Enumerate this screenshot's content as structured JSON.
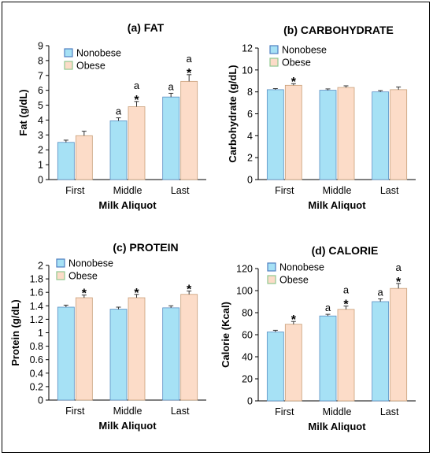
{
  "colors": {
    "nonobese": "#a6e1f5",
    "obese": "#fcdcc8",
    "nonobese_edge": "#5a8fc4",
    "obese_edge": "#c9a07a",
    "error_bar": "#333333"
  },
  "chart_data": [
    {
      "id": "fat",
      "type": "bar",
      "title": "(a)   FAT",
      "xlabel": "Milk Aliquot",
      "ylabel": "Fat (g/dL)",
      "ylim": [
        0,
        9
      ],
      "yticks": [
        0,
        1,
        2,
        3,
        4,
        5,
        6,
        7,
        8,
        9
      ],
      "categories": [
        "First",
        "Middle",
        "Last"
      ],
      "legend": "top-left",
      "series": [
        {
          "name": "Nonobese",
          "values": [
            2.5,
            3.95,
            5.55
          ],
          "errors": [
            0.15,
            0.2,
            0.25
          ],
          "annotations": [
            "",
            "a",
            "a"
          ]
        },
        {
          "name": "Obese",
          "values": [
            2.95,
            4.9,
            6.6
          ],
          "errors": [
            0.3,
            0.35,
            0.45
          ],
          "annotations": [
            "",
            "a *",
            "a *"
          ]
        }
      ]
    },
    {
      "id": "carbohydrate",
      "type": "bar",
      "title": "(b)   CARBOHYDRATE",
      "xlabel": "Milk Aliquot",
      "ylabel": "Carbohydrate (g/dL)",
      "ylim": [
        0,
        12
      ],
      "yticks": [
        0,
        2,
        4,
        6,
        8,
        10,
        12
      ],
      "categories": [
        "First",
        "Middle",
        "Last"
      ],
      "legend": "top-left",
      "series": [
        {
          "name": "Nonobese",
          "values": [
            8.2,
            8.15,
            8.0
          ],
          "errors": [
            0.1,
            0.12,
            0.12
          ],
          "annotations": [
            "",
            "",
            ""
          ]
        },
        {
          "name": "Obese",
          "values": [
            8.6,
            8.4,
            8.2
          ],
          "errors": [
            0.15,
            0.15,
            0.25
          ],
          "annotations": [
            "*",
            "",
            ""
          ]
        }
      ]
    },
    {
      "id": "protein",
      "type": "bar",
      "title": "(c)   PROTEIN",
      "xlabel": "Milk Aliquot",
      "ylabel": "Protein (g/dL)",
      "ylim": [
        0,
        2
      ],
      "yticks": [
        0,
        0.2,
        0.4,
        0.6,
        0.8,
        1,
        1.2,
        1.4,
        1.6,
        1.8,
        2
      ],
      "categories": [
        "First",
        "Middle",
        "Last"
      ],
      "legend": "top-left",
      "series": [
        {
          "name": "Nonobese",
          "values": [
            1.38,
            1.35,
            1.37
          ],
          "errors": [
            0.03,
            0.03,
            0.03
          ],
          "annotations": [
            "",
            "",
            ""
          ]
        },
        {
          "name": "Obese",
          "values": [
            1.52,
            1.52,
            1.57
          ],
          "errors": [
            0.04,
            0.05,
            0.05
          ],
          "annotations": [
            "*",
            "*",
            "*"
          ]
        }
      ]
    },
    {
      "id": "calorie",
      "type": "bar",
      "title": "(d)   CALORIE",
      "xlabel": "Milk Aliquot",
      "ylabel": "Calorie (Kcal)",
      "ylim": [
        0,
        120
      ],
      "yticks": [
        0,
        20,
        40,
        60,
        80,
        100,
        120
      ],
      "categories": [
        "First",
        "Middle",
        "Last"
      ],
      "legend": "top-left",
      "series": [
        {
          "name": "Nonobese",
          "values": [
            62.5,
            77,
            90
          ],
          "errors": [
            1.5,
            1.5,
            2.5
          ],
          "annotations": [
            "",
            "a",
            "a"
          ]
        },
        {
          "name": "Obese",
          "values": [
            69.5,
            83,
            102
          ],
          "errors": [
            2.5,
            3,
            4.5
          ],
          "annotations": [
            "*",
            "a *",
            "a *"
          ]
        }
      ]
    }
  ]
}
